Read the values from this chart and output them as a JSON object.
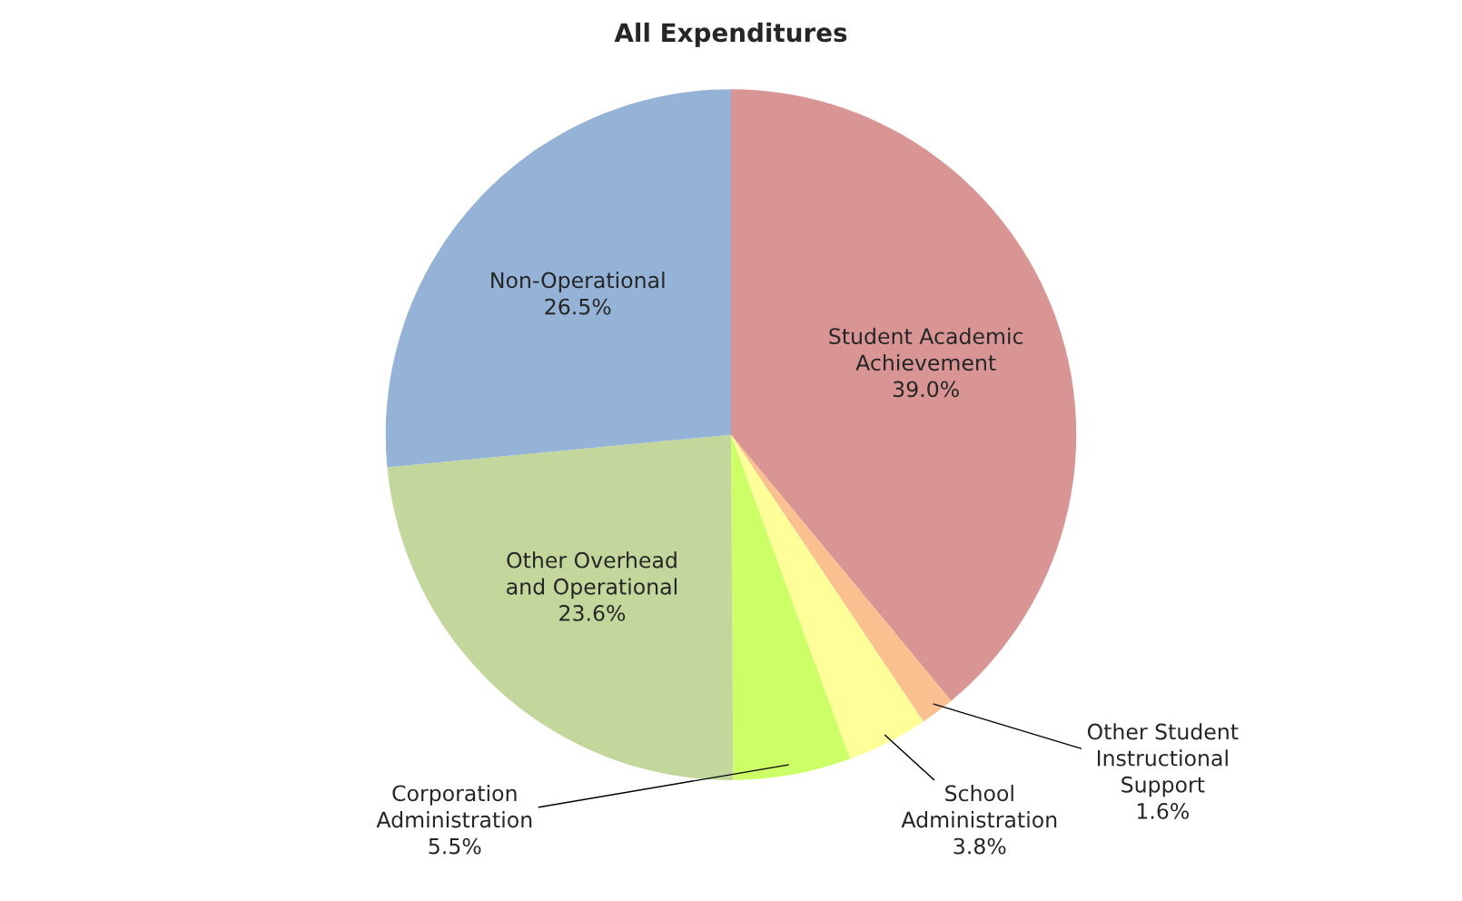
{
  "chart_data": {
    "type": "pie",
    "title": "All Expenditures",
    "categories": [
      "Student Academic\nAchievement",
      "Other Student\nInstructional\nSupport",
      "School\nAdministration",
      "Corporation\nAdministration",
      "Other Overhead\nand Operational",
      "Non-Operational"
    ],
    "values": [
      39.0,
      1.6,
      3.8,
      5.5,
      23.6,
      26.5
    ],
    "value_labels": [
      "39.0%",
      "1.6%",
      "3.8%",
      "5.5%",
      "23.6%",
      "26.5%"
    ],
    "colors": [
      "#d99594",
      "#fac090",
      "#ffff99",
      "#ccff66",
      "#c3d69b",
      "#95b3d7"
    ]
  }
}
